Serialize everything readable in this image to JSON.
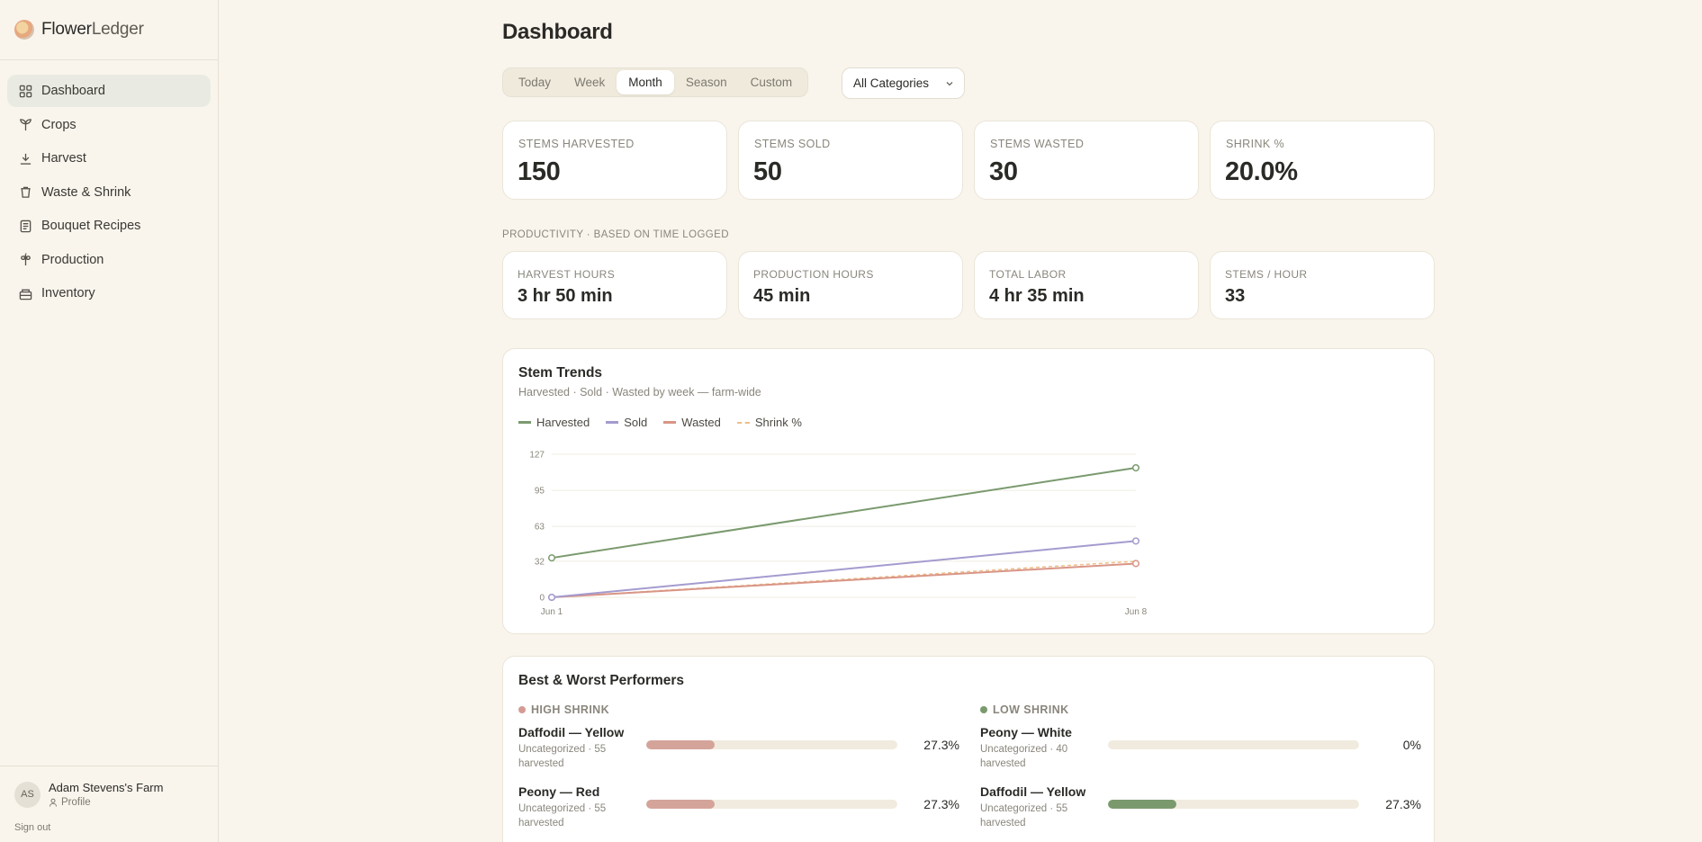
{
  "brand": {
    "name_part1": "Flower",
    "name_part2": "Ledger"
  },
  "sidebar": {
    "items": [
      {
        "label": "Dashboard",
        "icon": "dashboard-grid-icon",
        "active": true
      },
      {
        "label": "Crops",
        "icon": "sprout-icon"
      },
      {
        "label": "Harvest",
        "icon": "download-tray-icon"
      },
      {
        "label": "Waste & Shrink",
        "icon": "trash-icon"
      },
      {
        "label": "Bouquet Recipes",
        "icon": "recipe-card-icon"
      },
      {
        "label": "Production",
        "icon": "flower-icon"
      },
      {
        "label": "Inventory",
        "icon": "box-icon"
      }
    ]
  },
  "user": {
    "initials": "AS",
    "farm": "Adam Stevens's Farm",
    "profile_label": "Profile",
    "signout_label": "Sign out"
  },
  "page": {
    "title": "Dashboard"
  },
  "filters": {
    "ranges": [
      "Today",
      "Week",
      "Month",
      "Season",
      "Custom"
    ],
    "active_range": "Month",
    "category": "All Categories"
  },
  "stats": [
    {
      "label": "Stems Harvested",
      "value": "150"
    },
    {
      "label": "Stems Sold",
      "value": "50"
    },
    {
      "label": "Stems Wasted",
      "value": "30"
    },
    {
      "label": "Shrink %",
      "value": "20.0%"
    }
  ],
  "productivity": {
    "section_label": "Productivity · based on time logged",
    "items": [
      {
        "label": "Harvest Hours",
        "value": "3 hr 50 min"
      },
      {
        "label": "Production Hours",
        "value": "45 min"
      },
      {
        "label": "Total Labor",
        "value": "4 hr 35 min"
      },
      {
        "label": "Stems / Hour",
        "value": "33"
      }
    ]
  },
  "trend_card": {
    "title": "Stem Trends",
    "subtitle": "Harvested · Sold · Wasted by week — farm-wide"
  },
  "chart_data": {
    "type": "line",
    "x": [
      "Jun 1",
      "Jun 8"
    ],
    "y_ticks": [
      "0",
      "32",
      "63",
      "95",
      "127"
    ],
    "ylim": [
      0,
      127
    ],
    "grid": true,
    "legend_position": "top-left",
    "series": [
      {
        "name": "Harvested",
        "values": [
          35,
          115
        ],
        "color": "#7a9a6e",
        "dashed": false
      },
      {
        "name": "Sold",
        "values": [
          0,
          50
        ],
        "color": "#a59bcf",
        "dashed": false
      },
      {
        "name": "Wasted",
        "values": [
          0,
          30
        ],
        "color": "#d99586",
        "dashed": false
      },
      {
        "name": "Shrink %",
        "values": [
          0,
          32
        ],
        "color": "#ecbf8a",
        "dashed": true
      }
    ]
  },
  "performers": {
    "title": "Best & Worst Performers",
    "high": {
      "label": "High Shrink",
      "color": "#d49b94",
      "rows": [
        {
          "name": "Daffodil — Yellow",
          "meta": "Uncategorized · 55 harvested",
          "pct": "27.3%",
          "fraction": 0.273
        },
        {
          "name": "Peony — Red",
          "meta": "Uncategorized · 55 harvested",
          "pct": "27.3%",
          "fraction": 0.273
        }
      ]
    },
    "low": {
      "label": "Low Shrink",
      "color": "#7a9a6e",
      "rows": [
        {
          "name": "Peony — White",
          "meta": "Uncategorized · 40 harvested",
          "pct": "0%",
          "fraction": 0
        },
        {
          "name": "Daffodil — Yellow",
          "meta": "Uncategorized · 55 harvested",
          "pct": "27.3%",
          "fraction": 0.273
        }
      ]
    }
  }
}
